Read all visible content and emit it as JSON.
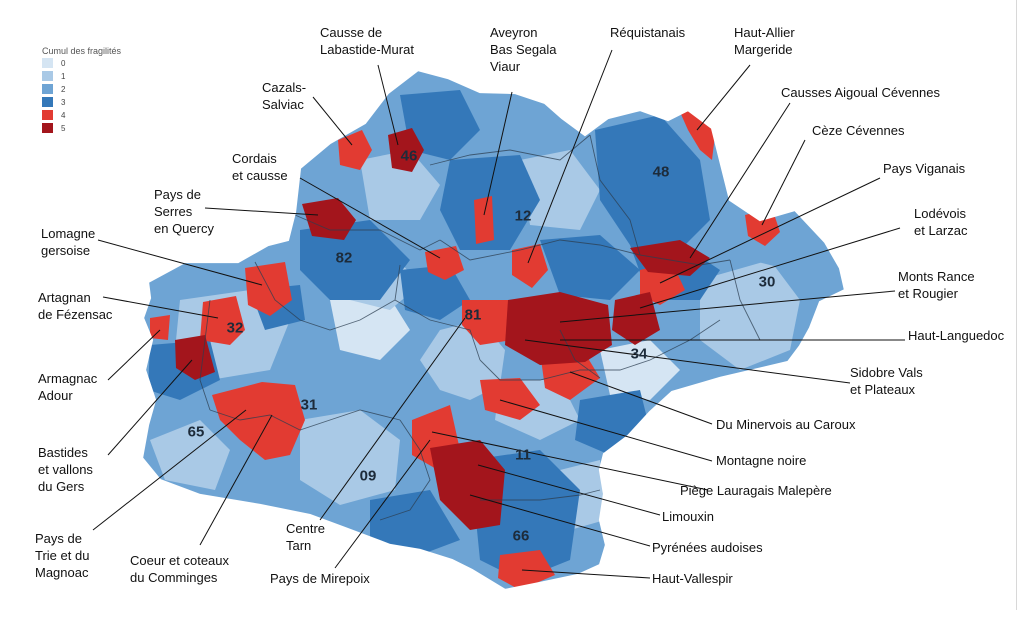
{
  "legend": {
    "title": "Cumul des fragilités",
    "items": [
      {
        "label": "0",
        "color": "#d5e5f3"
      },
      {
        "label": "1",
        "color": "#a9c9e6"
      },
      {
        "label": "2",
        "color": "#6ea4d4"
      },
      {
        "label": "3",
        "color": "#3478b9"
      },
      {
        "label": "4",
        "color": "#e23b32"
      },
      {
        "label": "5",
        "color": "#a3151c"
      }
    ]
  },
  "departments": [
    "46",
    "12",
    "48",
    "82",
    "30",
    "32",
    "81",
    "34",
    "31",
    "65",
    "11",
    "09",
    "66"
  ],
  "zones": [
    {
      "label": "Causse de\nLabastide-Murat",
      "level": 5
    },
    {
      "label": "Aveyron\nBas Segala\nViaur",
      "level": 4
    },
    {
      "label": "Réquistanais",
      "level": 4
    },
    {
      "label": "Haut-Allier\nMargeride",
      "level": 4
    },
    {
      "label": "Cazals-\nSalviac",
      "level": 4
    },
    {
      "label": "Causses Aigoual Cévennes",
      "level": 5
    },
    {
      "label": "Cèze Cévennes",
      "level": 4
    },
    {
      "label": "Cordais\net causse",
      "level": 4
    },
    {
      "label": "Pays Viganais",
      "level": 4
    },
    {
      "label": "Pays de\nSerres\nen Quercy",
      "level": 5
    },
    {
      "label": "Lodévois\net Larzac",
      "level": 5
    },
    {
      "label": "Lomagne\ngersoise",
      "level": 4
    },
    {
      "label": "Monts Rance\net Rougier",
      "level": 5
    },
    {
      "label": "Artagnan\nde Fézensac",
      "level": 4
    },
    {
      "label": "Haut-Languedoc",
      "level": 5
    },
    {
      "label": "Sidobre Vals\net Plateaux",
      "level": 5
    },
    {
      "label": "Armagnac\nAdour",
      "level": 4
    },
    {
      "label": "Du Minervois au Caroux",
      "level": 4
    },
    {
      "label": "Bastides\net vallons\ndu Gers",
      "level": 5
    },
    {
      "label": "Montagne noire",
      "level": 4
    },
    {
      "label": "Piège Lauragais Malepère",
      "level": 4
    },
    {
      "label": "Limouxin",
      "level": 5
    },
    {
      "label": "Pays de\nTrie et du\nMagnoac",
      "level": 4
    },
    {
      "label": "Coeur et coteaux\ndu Comminges",
      "level": 4
    },
    {
      "label": "Centre\nTarn",
      "level": 4
    },
    {
      "label": "Pays de Mirepoix",
      "level": 4
    },
    {
      "label": "Pyrénées audoises",
      "level": 5
    },
    {
      "label": "Haut-Vallespir",
      "level": 4
    }
  ]
}
